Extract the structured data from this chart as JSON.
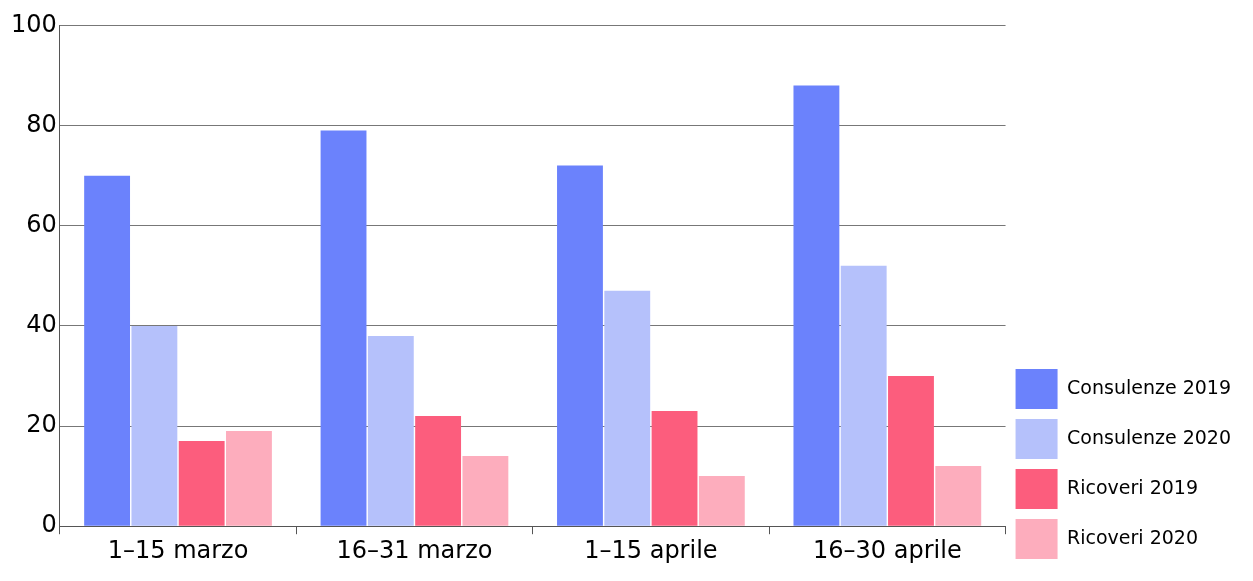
{
  "chart_data": {
    "type": "bar",
    "categories": [
      "1–15 marzo",
      "16–31 marzo",
      "1–15 aprile",
      "16–30 aprile"
    ],
    "series": [
      {
        "name": "Consulenze 2019",
        "color": "#6b82fc",
        "values": [
          70,
          79,
          72,
          88
        ]
      },
      {
        "name": "Consulenze 2020",
        "color": "#b5c1fb",
        "values": [
          40,
          38,
          47,
          52
        ]
      },
      {
        "name": "Ricoveri 2019",
        "color": "#fc5d7d",
        "values": [
          17,
          22,
          23,
          30
        ]
      },
      {
        "name": "Ricoveri 2020",
        "color": "#fdadbd",
        "values": [
          19,
          14,
          10,
          12
        ]
      }
    ],
    "ylim": [
      0,
      100
    ],
    "yticks": [
      0,
      20,
      40,
      60,
      80,
      100
    ],
    "grid": "y",
    "legend": "right"
  }
}
